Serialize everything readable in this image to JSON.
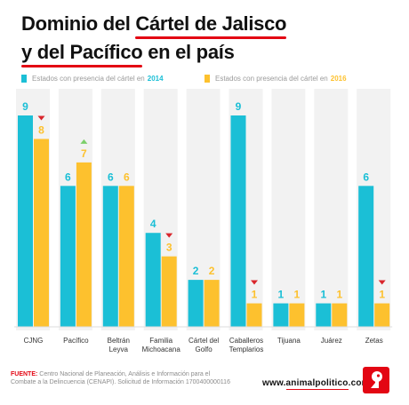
{
  "title": {
    "line1_plain": "Dominio del ",
    "line1_highlight": "Cártel de Jalisco",
    "line2_highlight": "y del Pacífico",
    "line2_plain": " en el país"
  },
  "legend": {
    "series1_label": "Estados con presencia del cártel en",
    "series1_year": "2014",
    "series2_label": "Estados con presencia del cártel en",
    "series2_year": "2016"
  },
  "colors": {
    "series_2014": "#1bbfd6",
    "series_2016": "#fdc12e",
    "up_arrow": "#7ccf6a",
    "down_arrow": "#d9262c",
    "column_bg": "#f2f2f2",
    "accent": "#e30613"
  },
  "chart_data": {
    "type": "bar",
    "categories": [
      "CJNG",
      "Pacífico",
      "Beltrán Leyva",
      "Familia Michoacana",
      "Cártel del Golfo",
      "Caballeros Templarios",
      "Tijuana",
      "Juárez",
      "Zetas"
    ],
    "category_lines": [
      [
        "CJNG"
      ],
      [
        "Pacífico"
      ],
      [
        "Beltrán",
        "Leyva"
      ],
      [
        "Familia",
        "Michoacana"
      ],
      [
        "Cártel del",
        "Golfo"
      ],
      [
        "Caballeros",
        "Templarios"
      ],
      [
        "Tijuana"
      ],
      [
        "Juárez"
      ],
      [
        "Zetas"
      ]
    ],
    "series": [
      {
        "name": "Estados con presencia del cártel en 2014",
        "values": [
          9,
          6,
          6,
          4,
          2,
          9,
          1,
          1,
          6
        ]
      },
      {
        "name": "Estados con presencia del cártel en 2016",
        "values": [
          8,
          7,
          6,
          3,
          2,
          1,
          1,
          1,
          1
        ]
      }
    ],
    "trend_markers": [
      "down",
      "up",
      "none",
      "down",
      "none",
      "down",
      "none",
      "none",
      "down"
    ],
    "ylim": [
      0,
      9
    ],
    "grid": false,
    "legend_position": "top"
  },
  "footer": {
    "source_label": "FUENTE:",
    "source_text": " Centro Nacional de Planeación, Análisis e Información para el Combate a la Delincuencia (CENAPI). Solicitud de Información 1700400000116",
    "url_prefix": "www.",
    "url_highlight": "animalpolitico",
    "url_suffix": ".com"
  },
  "logo_icon": "animal-politico-logo-icon"
}
